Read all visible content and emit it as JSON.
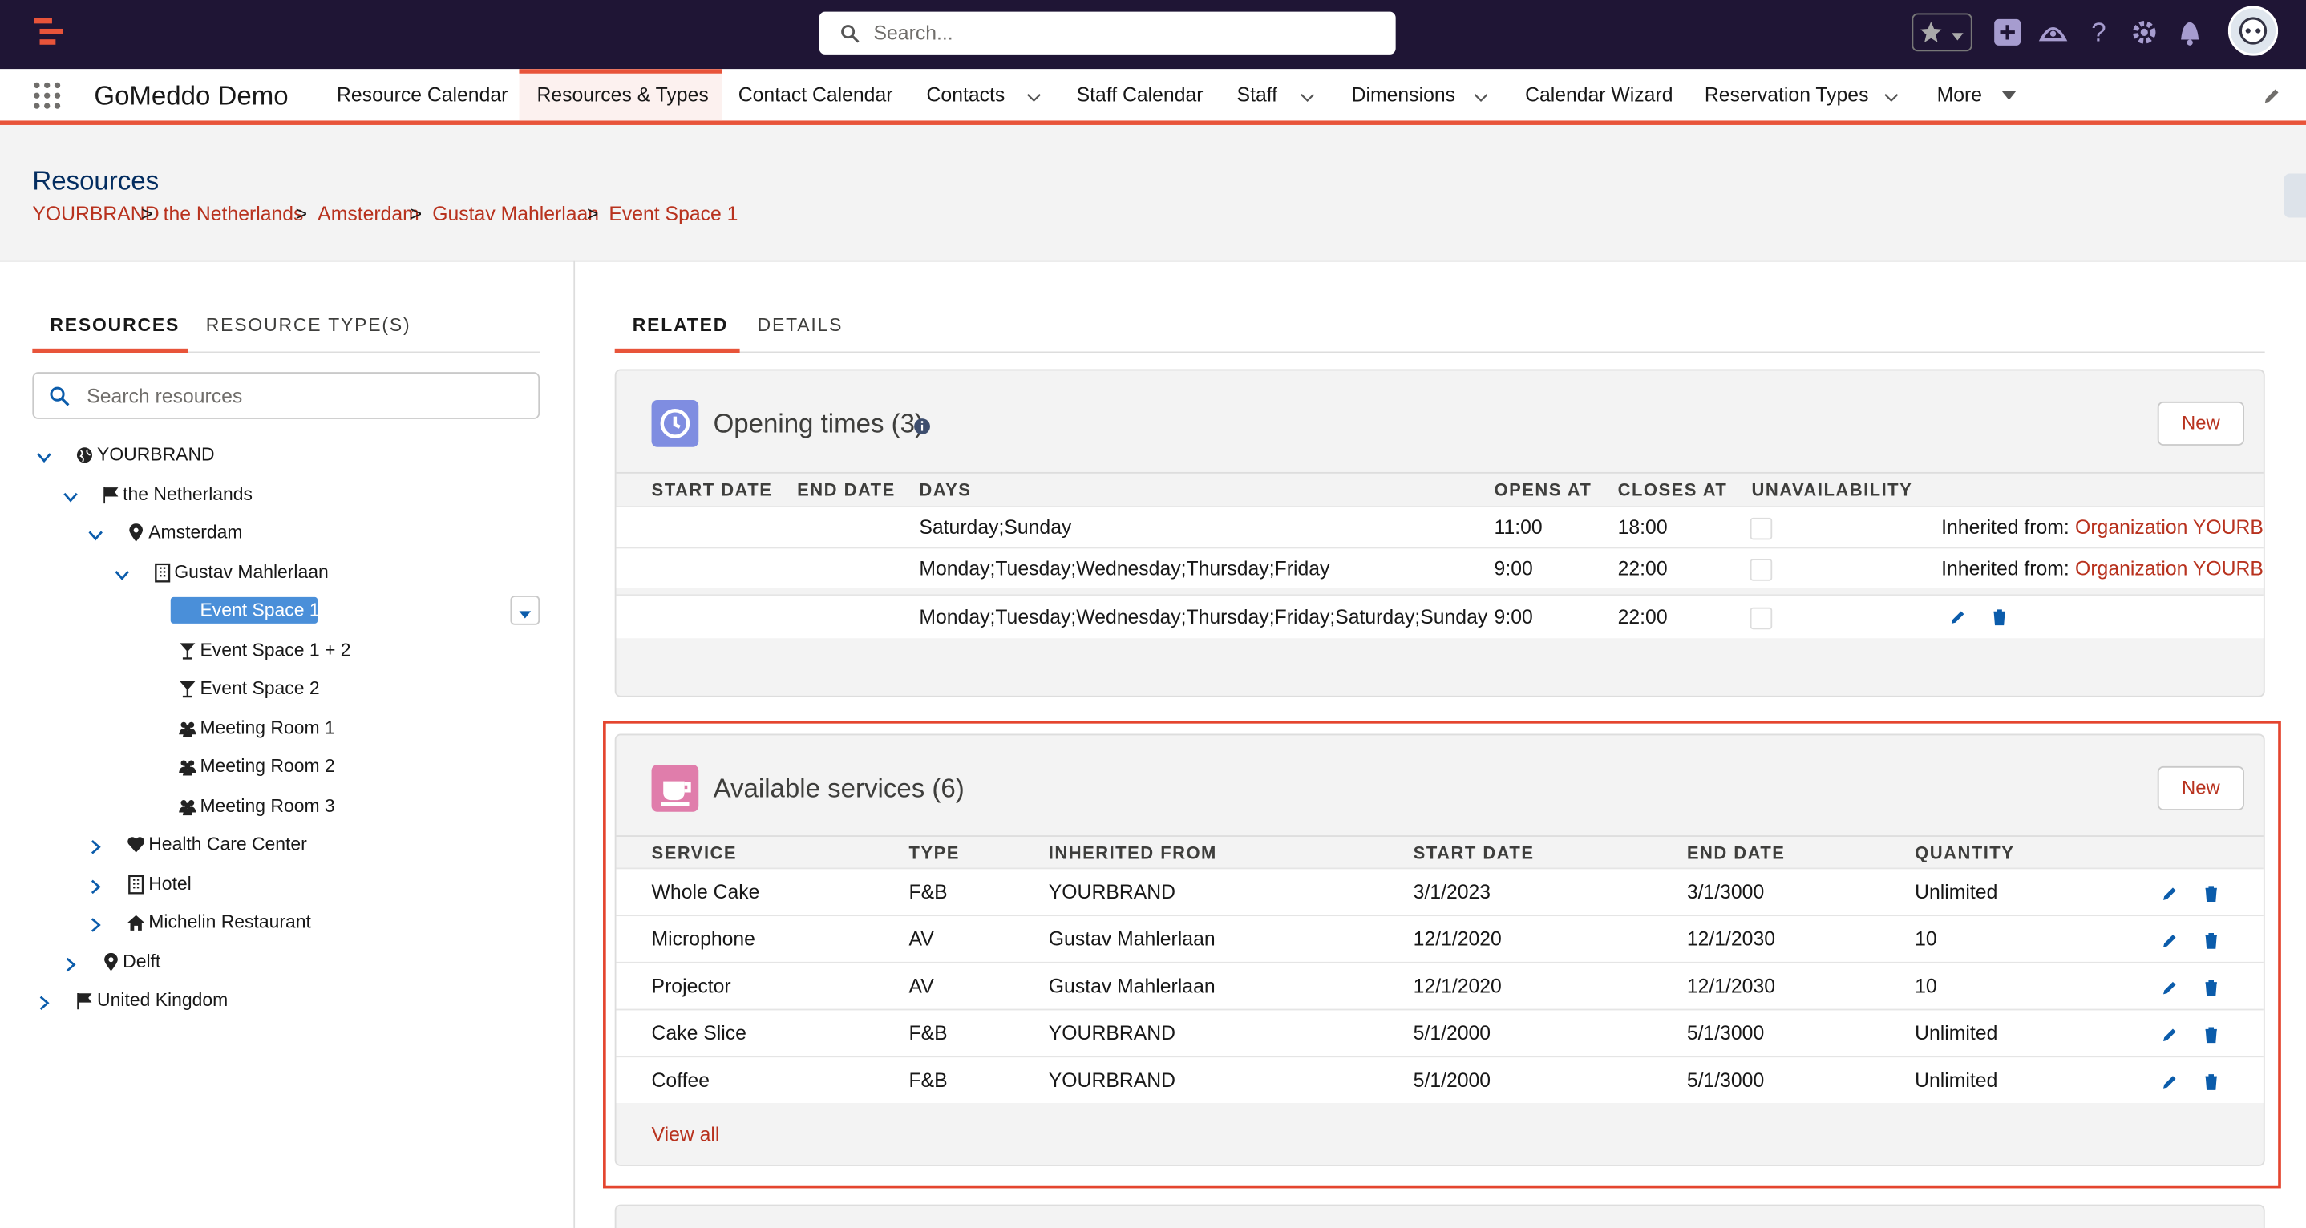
{
  "header": {
    "search_placeholder": "Search..."
  },
  "nav": {
    "app_name": "GoMeddo Demo",
    "items": [
      "Resource Calendar",
      "Resources & Types",
      "Contact Calendar",
      "Contacts",
      "Staff Calendar",
      "Staff",
      "Dimensions",
      "Calendar Wizard",
      "Reservation Types",
      "More"
    ]
  },
  "page": {
    "title": "Resources",
    "breadcrumb": [
      "YOURBRAND",
      "the Netherlands",
      "Amsterdam",
      "Gustav Mahlerlaan",
      "Event Space 1"
    ],
    "breadcrumb_separator": ">"
  },
  "left_panel": {
    "tabs": [
      "RESOURCES",
      "RESOURCE TYPE(S)"
    ],
    "search_placeholder": "Search resources",
    "tree": [
      "YOURBRAND",
      "the Netherlands",
      "Amsterdam",
      "Gustav Mahlerlaan",
      "Event Space 1",
      "Event Space 1 + 2",
      "Event Space 2",
      "Meeting Room 1",
      "Meeting Room 2",
      "Meeting Room 3",
      "Health Care Center",
      "Hotel",
      "Michelin Restaurant",
      "Delft",
      "United Kingdom"
    ]
  },
  "right_panel": {
    "tabs": [
      "RELATED",
      "DETAILS"
    ],
    "opening_times": {
      "title": "Opening times (3)",
      "new_button": "New",
      "columns": [
        "START DATE",
        "END DATE",
        "DAYS",
        "OPENS AT",
        "CLOSES AT",
        "UNAVAILABILITY"
      ],
      "rows": [
        [
          "",
          "",
          "Saturday;Sunday",
          "11:00",
          "18:00"
        ],
        [
          "",
          "",
          "Monday;Tuesday;Wednesday;Thursday;Friday",
          "9:00",
          "22:00"
        ],
        [
          "",
          "",
          "Monday;Tuesday;Wednesday;Thursday;Friday;Saturday;Sunday",
          "9:00",
          "22:00"
        ]
      ],
      "inherited_prefix": "Inherited from:",
      "inherited_source": "Organization YOURBRAND"
    },
    "available_services": {
      "title": "Available services (6)",
      "new_button": "New",
      "columns": [
        "SERVICE",
        "TYPE",
        "INHERITED FROM",
        "START DATE",
        "END DATE",
        "QUANTITY"
      ],
      "rows": [
        [
          "Whole Cake",
          "F&B",
          "YOURBRAND",
          "3/1/2023",
          "3/1/3000",
          "Unlimited"
        ],
        [
          "Microphone",
          "AV",
          "Gustav Mahlerlaan",
          "12/1/2020",
          "12/1/2030",
          "10"
        ],
        [
          "Projector",
          "AV",
          "Gustav Mahlerlaan",
          "12/1/2020",
          "12/1/2030",
          "10"
        ],
        [
          "Cake Slice",
          "F&B",
          "YOURBRAND",
          "5/1/2000",
          "5/1/3000",
          "Unlimited"
        ],
        [
          "Coffee",
          "F&B",
          "YOURBRAND",
          "5/1/2000",
          "5/1/3000",
          "Unlimited"
        ]
      ],
      "view_all": "View all"
    }
  }
}
